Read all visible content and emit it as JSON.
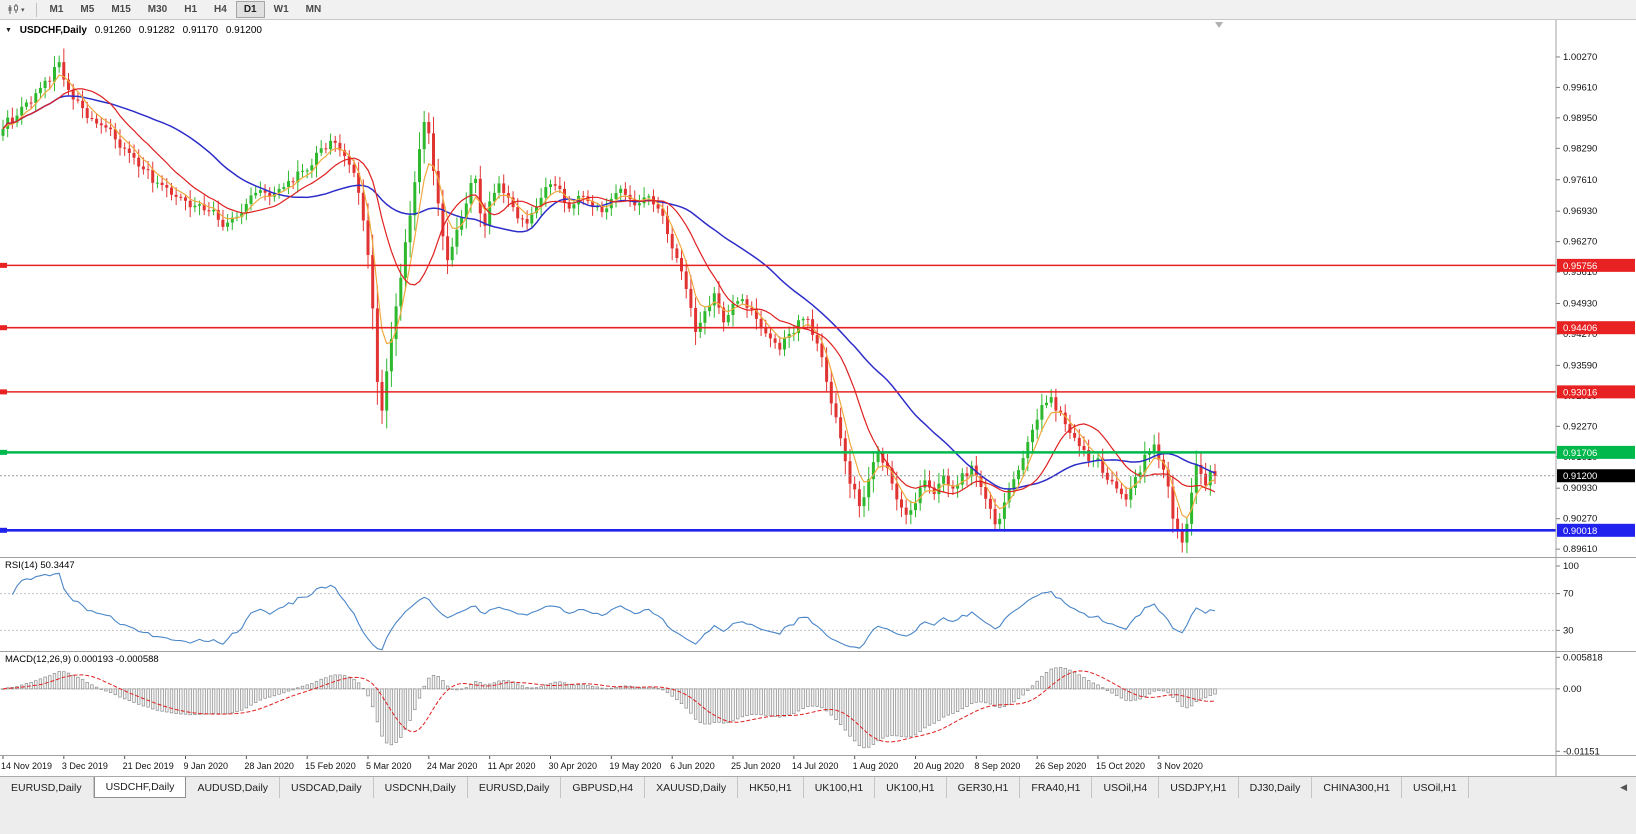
{
  "colors": {
    "bg": "#ffffff",
    "toolbar_bg": "#f1f1f1",
    "candle_up": "#2db82d",
    "candle_down": "#e23333",
    "ma_fast": "#efa93f",
    "ma_mid": "#e02020",
    "ma_slow": "#2d2dc9",
    "line_red": "#e82222",
    "line_green": "#00b84c",
    "line_blue": "#2222ee",
    "rsi_line": "#4a86c8",
    "rsi_level": "#c0c0c0",
    "macd_bar_fill": "#f4f4f4",
    "macd_bar_stroke": "#8a8a8a",
    "macd_signal": "#e02020",
    "current_price_bg": "#000000",
    "axis_text": "#111111"
  },
  "toolbar": {
    "chart_tool_icon": "chart-tool-icon",
    "dropdown_icon": "▾",
    "timeframes": [
      {
        "label": "M1",
        "active": false
      },
      {
        "label": "M5",
        "active": false
      },
      {
        "label": "M15",
        "active": false
      },
      {
        "label": "M30",
        "active": false
      },
      {
        "label": "H1",
        "active": false
      },
      {
        "label": "H4",
        "active": false
      },
      {
        "label": "D1",
        "active": true
      },
      {
        "label": "W1",
        "active": false
      },
      {
        "label": "MN",
        "active": false
      }
    ]
  },
  "chart_header": {
    "collapse_icon": "▼",
    "symbol": "USDCHF,Daily",
    "open": "0.91260",
    "high": "0.91282",
    "low": "0.91170",
    "close": "0.91200"
  },
  "chart_data": {
    "type": "candlestick",
    "symbol": "USDCHF",
    "timeframe": "Daily",
    "num_candles": 260,
    "price_axis": {
      "min": 0.8944,
      "max": 1.0107,
      "labels": [
        "1.00270",
        "0.99610",
        "0.98950",
        "0.98290",
        "0.97610",
        "0.96930",
        "0.96270",
        "0.95610",
        "0.94930",
        "0.94270",
        "0.93590",
        "0.92930",
        "0.92270",
        "0.91610",
        "0.90930",
        "0.90270",
        "0.89610"
      ]
    },
    "x_axis": {
      "candles_per_label": 13,
      "labels": [
        "14 Nov 2019",
        "3 Dec 2019",
        "21 Dec 2019",
        "9 Jan 2020",
        "28 Jan 2020",
        "15 Feb 2020",
        "5 Mar 2020",
        "24 Mar 2020",
        "11 Apr 2020",
        "30 Apr 2020",
        "19 May 2020",
        "6 Jun 2020",
        "25 Jun 2020",
        "14 Jul 2020",
        "1 Aug 2020",
        "20 Aug 2020",
        "8 Sep 2020",
        "26 Sep 2020",
        "15 Oct 2020",
        "3 Nov 2020"
      ]
    },
    "close_anchors": [
      [
        0,
        0.9878
      ],
      [
        3,
        0.99
      ],
      [
        6,
        0.9935
      ],
      [
        9,
        0.9968
      ],
      [
        11,
        1.0
      ],
      [
        12,
        1.0008
      ],
      [
        13,
        0.9972
      ],
      [
        15,
        0.9938
      ],
      [
        18,
        0.9905
      ],
      [
        21,
        0.9878
      ],
      [
        24,
        0.9852
      ],
      [
        26,
        0.9826
      ],
      [
        29,
        0.98
      ],
      [
        32,
        0.9762
      ],
      [
        35,
        0.9738
      ],
      [
        39,
        0.9716
      ],
      [
        42,
        0.97
      ],
      [
        45,
        0.9688
      ],
      [
        47,
        0.9668
      ],
      [
        49,
        0.9678
      ],
      [
        52,
        0.9703
      ],
      [
        55,
        0.9745
      ],
      [
        57,
        0.9726
      ],
      [
        60,
        0.9742
      ],
      [
        62,
        0.9762
      ],
      [
        65,
        0.9788
      ],
      [
        68,
        0.982
      ],
      [
        70,
        0.9846
      ],
      [
        72,
        0.9828
      ],
      [
        74,
        0.9795
      ],
      [
        76,
        0.974
      ],
      [
        77,
        0.968
      ],
      [
        78,
        0.96
      ],
      [
        79,
        0.9485
      ],
      [
        80,
        0.933
      ],
      [
        81,
        0.9258
      ],
      [
        82,
        0.9345
      ],
      [
        83,
        0.942
      ],
      [
        84,
        0.9495
      ],
      [
        85,
        0.9555
      ],
      [
        86,
        0.9615
      ],
      [
        87,
        0.969
      ],
      [
        88,
        0.976
      ],
      [
        89,
        0.983
      ],
      [
        90,
        0.9885
      ],
      [
        91,
        0.9862
      ],
      [
        92,
        0.979
      ],
      [
        93,
        0.9705
      ],
      [
        94,
        0.964
      ],
      [
        95,
        0.9592
      ],
      [
        96,
        0.9615
      ],
      [
        97,
        0.9645
      ],
      [
        98,
        0.9678
      ],
      [
        99,
        0.9712
      ],
      [
        100,
        0.9748
      ],
      [
        101,
        0.9752
      ],
      [
        102,
        0.9688
      ],
      [
        103,
        0.966
      ],
      [
        104,
        0.9712
      ],
      [
        106,
        0.9755
      ],
      [
        108,
        0.9722
      ],
      [
        110,
        0.968
      ],
      [
        112,
        0.9668
      ],
      [
        114,
        0.9705
      ],
      [
        116,
        0.9742
      ],
      [
        117,
        0.9762
      ],
      [
        119,
        0.9735
      ],
      [
        121,
        0.9698
      ],
      [
        124,
        0.9726
      ],
      [
        127,
        0.9694
      ],
      [
        130,
        0.9716
      ],
      [
        132,
        0.9744
      ],
      [
        135,
        0.9702
      ],
      [
        138,
        0.9726
      ],
      [
        140,
        0.9698
      ],
      [
        143,
        0.9622
      ],
      [
        145,
        0.956
      ],
      [
        147,
        0.9485
      ],
      [
        148,
        0.9432
      ],
      [
        150,
        0.9472
      ],
      [
        152,
        0.9512
      ],
      [
        154,
        0.9462
      ],
      [
        156,
        0.9482
      ],
      [
        158,
        0.9505
      ],
      [
        160,
        0.9472
      ],
      [
        162,
        0.9442
      ],
      [
        164,
        0.9415
      ],
      [
        166,
        0.9398
      ],
      [
        168,
        0.9425
      ],
      [
        170,
        0.9455
      ],
      [
        172,
        0.9462
      ],
      [
        174,
        0.941
      ],
      [
        176,
        0.933
      ],
      [
        178,
        0.924
      ],
      [
        180,
        0.915
      ],
      [
        181,
        0.9108
      ],
      [
        182,
        0.9092
      ],
      [
        183,
        0.9058
      ],
      [
        185,
        0.9112
      ],
      [
        187,
        0.9168
      ],
      [
        189,
        0.9128
      ],
      [
        191,
        0.9072
      ],
      [
        193,
        0.9028
      ],
      [
        195,
        0.9072
      ],
      [
        197,
        0.9112
      ],
      [
        199,
        0.9085
      ],
      [
        201,
        0.9112
      ],
      [
        203,
        0.9088
      ],
      [
        205,
        0.9118
      ],
      [
        207,
        0.9142
      ],
      [
        209,
        0.9098
      ],
      [
        211,
        0.9042
      ],
      [
        212,
        0.9008
      ],
      [
        214,
        0.9062
      ],
      [
        216,
        0.9112
      ],
      [
        218,
        0.9162
      ],
      [
        220,
        0.9222
      ],
      [
        222,
        0.9268
      ],
      [
        224,
        0.929
      ],
      [
        226,
        0.9252
      ],
      [
        228,
        0.9212
      ],
      [
        230,
        0.9182
      ],
      [
        232,
        0.9162
      ],
      [
        234,
        0.9148
      ],
      [
        236,
        0.9122
      ],
      [
        238,
        0.9092
      ],
      [
        240,
        0.9072
      ],
      [
        242,
        0.9112
      ],
      [
        244,
        0.9162
      ],
      [
        246,
        0.9188
      ],
      [
        247,
        0.9162
      ],
      [
        249,
        0.9098
      ],
      [
        250,
        0.9032
      ],
      [
        252,
        0.8972
      ],
      [
        253,
        0.9012
      ],
      [
        254,
        0.9085
      ],
      [
        255,
        0.9142
      ],
      [
        256,
        0.9122
      ],
      [
        257,
        0.9105
      ],
      [
        258,
        0.9128
      ],
      [
        259,
        0.912
      ]
    ],
    "horizontal_lines": [
      {
        "price": 0.95756,
        "label": "0.95756",
        "color": "#e82222",
        "width": 1.6
      },
      {
        "price": 0.94406,
        "label": "0.94406",
        "color": "#e82222",
        "width": 1.6
      },
      {
        "price": 0.93016,
        "label": "0.93016",
        "color": "#e82222",
        "width": 1.6
      },
      {
        "price": 0.91706,
        "label": "0.91706",
        "color": "#00b84c",
        "width": 2.6
      },
      {
        "price": 0.90018,
        "label": "0.90018",
        "color": "#2222ee",
        "width": 2.6
      }
    ],
    "current_price": {
      "value": 0.912,
      "label": "0.91200"
    },
    "moving_averages": [
      {
        "period": 34,
        "type": "sma",
        "color": "#2d2dc9",
        "width": 1.5
      },
      {
        "period": 5,
        "type": "ema",
        "color": "#efa93f",
        "width": 1.2
      },
      {
        "period": 13,
        "type": "sma",
        "color": "#e02020",
        "width": 1.2
      }
    ],
    "indicators": {
      "rsi": {
        "display": "RSI(14) 50.3447",
        "period": 14,
        "value": 50.3447,
        "levels": [
          70,
          30
        ],
        "axis_labels": [
          "100",
          "70",
          "30"
        ],
        "scale": {
          "min": 0,
          "max": 100
        }
      },
      "macd": {
        "display": "MACD(12,26,9) 0.000193 -0.000588",
        "fast": 12,
        "slow": 26,
        "signal": 9,
        "value": 0.000193,
        "signal_value": -0.000588,
        "axis_labels": [
          {
            "value": 0.005818,
            "label": "0.005818"
          },
          {
            "value": 0,
            "label": "0.00"
          },
          {
            "value": -0.01151,
            "label": "-0.01151"
          }
        ],
        "scale": {
          "min": -0.0122,
          "max": 0.0068
        }
      }
    }
  },
  "tabs": {
    "active_index": 1,
    "scroll_left_icon": "◀",
    "items": [
      "EURUSD,Daily",
      "USDCHF,Daily",
      "AUDUSD,Daily",
      "USDCAD,Daily",
      "USDCNH,Daily",
      "EURUSD,Daily",
      "GBPUSD,H4",
      "XAUUSD,Daily",
      "HK50,H1",
      "UK100,H1",
      "UK100,H1",
      "GER30,H1",
      "FRA40,H1",
      "USOil,H4",
      "USDJPY,H1",
      "DJ30,Daily",
      "CHINA300,H1",
      "USOil,H1"
    ]
  }
}
